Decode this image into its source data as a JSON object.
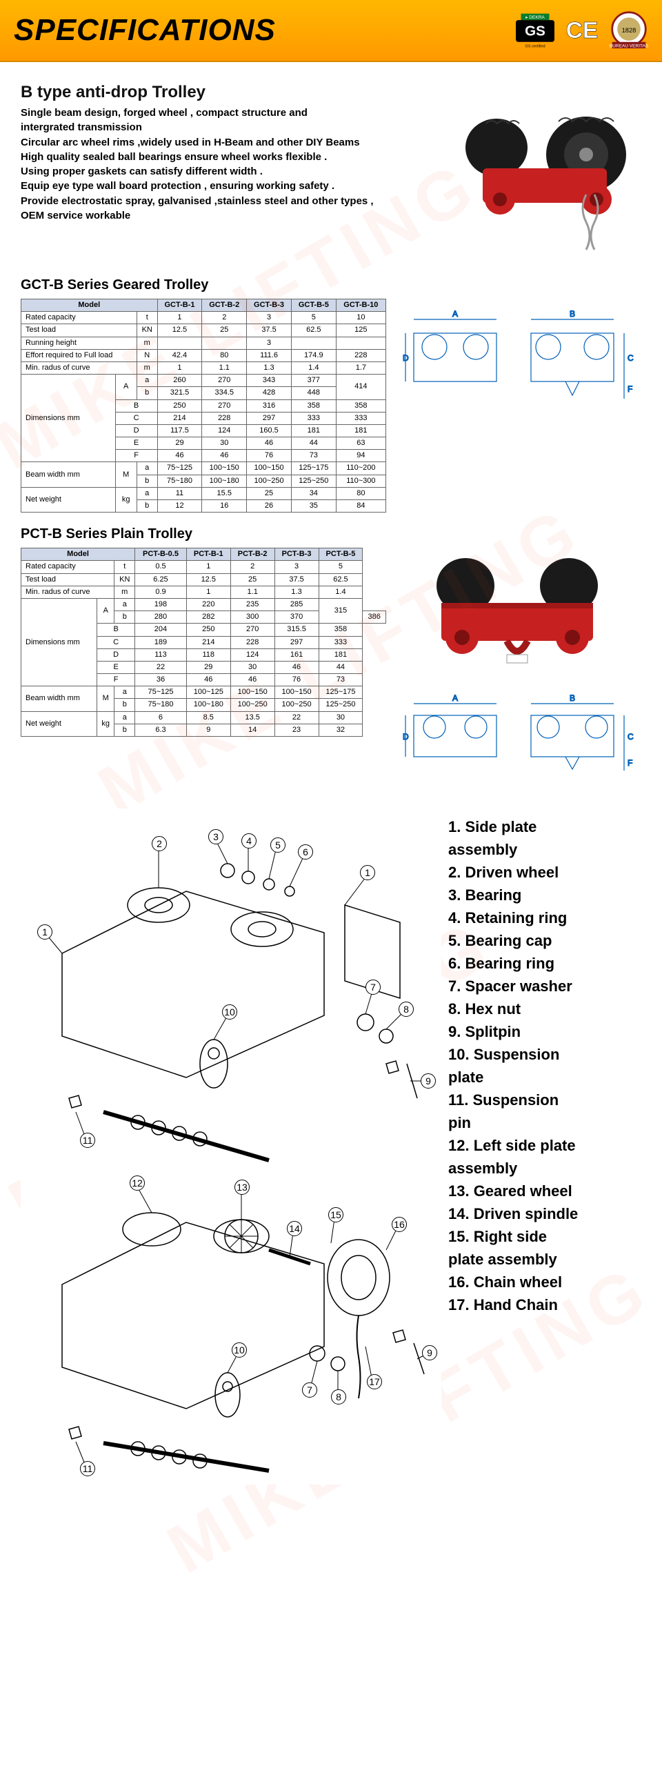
{
  "header": {
    "title": "SPECIFICATIONS",
    "badges": [
      "GS",
      "CE",
      "BUREAU VERITAS"
    ]
  },
  "product": {
    "title": "B type anti-drop Trolley",
    "features": [
      "Single beam design, forged wheel , compact structure and",
      "intergrated transmission",
      "Circular arc wheel rims ,widely used in H-Beam and other DIY Beams",
      "High quality sealed ball bearings ensure wheel works flexible .",
      "Using proper gaskets can satisfy different width .",
      "Equip eye type wall board protection , ensuring working safety .",
      "Provide electrostatic spray, galvanised ,stainless steel and other types ,",
      "OEM service workable"
    ]
  },
  "series1": {
    "title": "GCT-B Series Geared Trolley",
    "table": {
      "model_header": "Model",
      "columns": [
        "GCT-B-1",
        "GCT-B-2",
        "GCT-B-3",
        "GCT-B-5",
        "GCT-B-10"
      ],
      "rows": [
        {
          "label": "Rated capacity",
          "unit": "t",
          "vals": [
            "1",
            "2",
            "3",
            "5",
            "10"
          ]
        },
        {
          "label": "Test load",
          "unit": "KN",
          "vals": [
            "12.5",
            "25",
            "37.5",
            "62.5",
            "125"
          ]
        },
        {
          "label": "Running height",
          "unit": "m",
          "vals": [
            "",
            "",
            "3",
            "",
            ""
          ]
        },
        {
          "label": "Effort required to Full load",
          "unit": "N",
          "vals": [
            "42.4",
            "80",
            "111.6",
            "174.9",
            "228"
          ]
        },
        {
          "label": "Min. radus of curve",
          "unit": "m",
          "vals": [
            "1",
            "1.1",
            "1.3",
            "1.4",
            "1.7"
          ]
        }
      ],
      "dim_group": {
        "label": "Dimensions mm",
        "rows": [
          {
            "g": "A",
            "s": "a",
            "vals": [
              "260",
              "270",
              "343",
              "377",
              "414"
            ],
            "merge": true
          },
          {
            "g": "A",
            "s": "b",
            "vals": [
              "321.5",
              "334.5",
              "428",
              "448",
              ""
            ],
            "merge": false
          },
          {
            "g": "B",
            "vals": [
              "250",
              "270",
              "316",
              "358",
              "358"
            ]
          },
          {
            "g": "C",
            "vals": [
              "214",
              "228",
              "297",
              "333",
              "333"
            ]
          },
          {
            "g": "D",
            "vals": [
              "117.5",
              "124",
              "160.5",
              "181",
              "181"
            ]
          },
          {
            "g": "E",
            "vals": [
              "29",
              "30",
              "46",
              "44",
              "63"
            ]
          },
          {
            "g": "F",
            "vals": [
              "46",
              "46",
              "76",
              "73",
              "94"
            ]
          }
        ]
      },
      "beam": {
        "label": "Beam width mm",
        "g": "M",
        "rows": [
          {
            "s": "a",
            "vals": [
              "75~125",
              "100~150",
              "100~150",
              "125~175",
              "110~200"
            ]
          },
          {
            "s": "b",
            "vals": [
              "75~180",
              "100~180",
              "100~250",
              "125~250",
              "110~300"
            ]
          }
        ]
      },
      "weight": {
        "label": "Net weight",
        "unit": "kg",
        "rows": [
          {
            "s": "a",
            "vals": [
              "11",
              "15.5",
              "25",
              "34",
              "80"
            ]
          },
          {
            "s": "b",
            "vals": [
              "12",
              "16",
              "26",
              "35",
              "84"
            ]
          }
        ]
      }
    }
  },
  "series2": {
    "title": "PCT-B Series Plain Trolley",
    "table": {
      "model_header": "Model",
      "columns": [
        "PCT-B-0.5",
        "PCT-B-1",
        "PCT-B-2",
        "PCT-B-3",
        "PCT-B-5"
      ],
      "rows": [
        {
          "label": "Rated capacity",
          "unit": "t",
          "vals": [
            "0.5",
            "1",
            "2",
            "3",
            "5"
          ]
        },
        {
          "label": "Test load",
          "unit": "KN",
          "vals": [
            "6.25",
            "12.5",
            "25",
            "37.5",
            "62.5"
          ]
        },
        {
          "label": "Min. radus of curve",
          "unit": "m",
          "vals": [
            "0.9",
            "1",
            "1.1",
            "1.3",
            "1.4"
          ]
        }
      ],
      "dim_group": {
        "label": "Dimensions mm",
        "rows": [
          {
            "g": "A",
            "s": "a",
            "vals": [
              "198",
              "220",
              "235",
              "285",
              "315"
            ],
            "merge": true
          },
          {
            "g": "A",
            "s": "b",
            "vals": [
              "280",
              "282",
              "300",
              "370",
              "386"
            ],
            "merge": false
          },
          {
            "g": "B",
            "vals": [
              "204",
              "250",
              "270",
              "315.5",
              "358"
            ]
          },
          {
            "g": "C",
            "vals": [
              "189",
              "214",
              "228",
              "297",
              "333"
            ]
          },
          {
            "g": "D",
            "vals": [
              "113",
              "118",
              "124",
              "161",
              "181"
            ]
          },
          {
            "g": "E",
            "vals": [
              "22",
              "29",
              "30",
              "46",
              "44"
            ]
          },
          {
            "g": "F",
            "vals": [
              "36",
              "46",
              "46",
              "76",
              "73"
            ]
          }
        ]
      },
      "beam": {
        "label": "Beam width mm",
        "g": "M",
        "rows": [
          {
            "s": "a",
            "vals": [
              "75~125",
              "100~125",
              "100~150",
              "100~150",
              "125~175"
            ]
          },
          {
            "s": "b",
            "vals": [
              "75~180",
              "100~180",
              "100~250",
              "100~250",
              "125~250"
            ]
          }
        ]
      },
      "weight": {
        "label": "Net weight",
        "unit": "kg",
        "rows": [
          {
            "s": "a",
            "vals": [
              "6",
              "8.5",
              "13.5",
              "22",
              "30"
            ]
          },
          {
            "s": "b",
            "vals": [
              "6.3",
              "9",
              "14",
              "23",
              "32"
            ]
          }
        ]
      }
    }
  },
  "dim_labels": {
    "A": "A",
    "B": "B",
    "C": "C",
    "D": "D",
    "F": "F"
  },
  "parts": [
    "1. Side plate\n    assembly",
    "2. Driven wheel",
    "3. Bearing",
    "4. Retaining ring",
    "5. Bearing cap",
    "6. Bearing ring",
    "7. Spacer washer",
    "8. Hex nut",
    "9. Splitpin",
    "10. Suspension\n      plate",
    "11. Suspension\n      pin",
    "12. Left side plate\n      assembly",
    "13. Geared wheel",
    "14. Driven spindle",
    "15. Right side\n      plate  assembly",
    "16. Chain wheel",
    "17. Hand Chain"
  ],
  "watermark": "MIKE LIFTING",
  "colors": {
    "header_grad_top": "#ffb700",
    "header_grad_bot": "#ff9900",
    "table_header": "#cfd8e8",
    "trolley_red": "#c62020",
    "trolley_black": "#1a1a1a"
  }
}
